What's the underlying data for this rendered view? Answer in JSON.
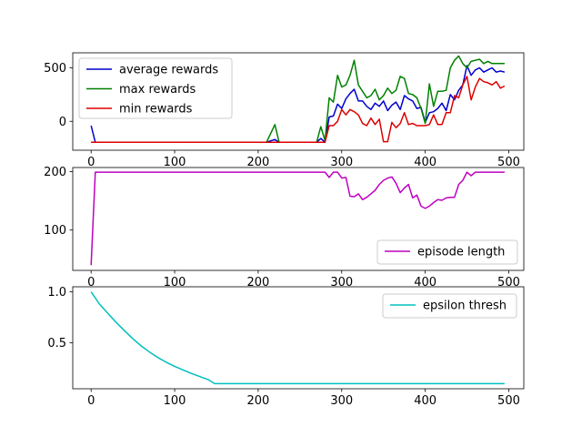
{
  "chart_data": [
    {
      "type": "line",
      "xlim": [
        -22,
        518
      ],
      "ylim": [
        -270,
        640
      ],
      "xticks": [
        0,
        100,
        200,
        300,
        400,
        500
      ],
      "yticks": [
        0,
        500
      ],
      "legend": "top-left",
      "series": [
        {
          "name": "average rewards",
          "color": "#0000cc",
          "x": [
            0,
            5,
            10,
            20,
            30,
            40,
            50,
            60,
            70,
            80,
            90,
            100,
            110,
            120,
            130,
            140,
            150,
            160,
            170,
            180,
            190,
            200,
            210,
            220,
            225,
            230,
            240,
            250,
            260,
            270,
            275,
            280,
            285,
            290,
            295,
            300,
            305,
            310,
            315,
            320,
            325,
            330,
            335,
            340,
            345,
            350,
            355,
            360,
            365,
            370,
            375,
            380,
            385,
            390,
            395,
            400,
            405,
            410,
            415,
            420,
            425,
            430,
            435,
            440,
            445,
            450,
            455,
            460,
            465,
            470,
            475,
            480,
            485,
            490,
            495
          ],
          "y": [
            -40,
            -195,
            -195,
            -195,
            -195,
            -195,
            -195,
            -195,
            -195,
            -195,
            -195,
            -195,
            -195,
            -195,
            -195,
            -195,
            -195,
            -195,
            -195,
            -195,
            -195,
            -195,
            -195,
            -170,
            -195,
            -195,
            -195,
            -195,
            -195,
            -195,
            -160,
            -195,
            40,
            50,
            160,
            120,
            210,
            260,
            300,
            190,
            190,
            140,
            110,
            170,
            140,
            190,
            100,
            150,
            180,
            110,
            240,
            210,
            190,
            120,
            130,
            -10,
            80,
            90,
            120,
            170,
            100,
            250,
            200,
            290,
            340,
            520,
            430,
            480,
            500,
            460,
            480,
            500,
            460,
            470,
            460
          ]
        },
        {
          "name": "max rewards",
          "color": "#008000",
          "x": [
            0,
            5,
            10,
            20,
            30,
            40,
            50,
            60,
            70,
            80,
            90,
            100,
            110,
            120,
            130,
            140,
            150,
            160,
            170,
            180,
            190,
            200,
            210,
            220,
            225,
            230,
            240,
            250,
            260,
            270,
            275,
            280,
            285,
            290,
            295,
            300,
            305,
            310,
            315,
            320,
            325,
            330,
            335,
            340,
            345,
            350,
            355,
            360,
            365,
            370,
            375,
            380,
            385,
            390,
            395,
            400,
            405,
            410,
            415,
            420,
            425,
            430,
            435,
            440,
            445,
            450,
            455,
            460,
            465,
            470,
            475,
            480,
            485,
            490,
            495
          ],
          "y": [
            -195,
            -195,
            -195,
            -195,
            -195,
            -195,
            -195,
            -195,
            -195,
            -195,
            -195,
            -195,
            -195,
            -195,
            -195,
            -195,
            -195,
            -195,
            -195,
            -195,
            -195,
            -195,
            -195,
            -30,
            -195,
            -195,
            -195,
            -195,
            -195,
            -195,
            -50,
            -180,
            220,
            180,
            430,
            320,
            340,
            430,
            570,
            340,
            280,
            220,
            240,
            300,
            200,
            240,
            310,
            260,
            290,
            420,
            400,
            260,
            250,
            220,
            120,
            -20,
            350,
            140,
            280,
            280,
            290,
            500,
            570,
            610,
            540,
            500,
            560,
            570,
            580,
            540,
            560,
            540,
            540,
            540,
            540
          ]
        },
        {
          "name": "min rewards",
          "color": "#dd0000",
          "x": [
            0,
            5,
            10,
            20,
            30,
            40,
            50,
            60,
            70,
            80,
            90,
            100,
            110,
            120,
            130,
            140,
            150,
            160,
            170,
            180,
            190,
            200,
            210,
            220,
            225,
            230,
            240,
            250,
            260,
            270,
            275,
            280,
            285,
            290,
            295,
            300,
            305,
            310,
            315,
            320,
            325,
            330,
            335,
            340,
            345,
            350,
            355,
            360,
            365,
            370,
            375,
            380,
            385,
            390,
            395,
            400,
            405,
            410,
            415,
            420,
            425,
            430,
            435,
            440,
            445,
            450,
            455,
            460,
            465,
            470,
            475,
            480,
            485,
            490,
            495
          ],
          "y": [
            -195,
            -195,
            -195,
            -195,
            -195,
            -195,
            -195,
            -195,
            -195,
            -195,
            -195,
            -195,
            -195,
            -195,
            -195,
            -195,
            -195,
            -195,
            -195,
            -195,
            -195,
            -195,
            -195,
            -195,
            -195,
            -195,
            -195,
            -195,
            -195,
            -195,
            -195,
            -195,
            -40,
            -40,
            0,
            110,
            60,
            110,
            90,
            60,
            -20,
            -40,
            30,
            -30,
            20,
            -190,
            -190,
            -10,
            -60,
            -20,
            80,
            -30,
            -20,
            -40,
            -40,
            -40,
            -30,
            60,
            -30,
            -30,
            80,
            80,
            240,
            220,
            340,
            420,
            200,
            320,
            400,
            370,
            360,
            340,
            370,
            310,
            330
          ]
        }
      ]
    },
    {
      "type": "line",
      "xlim": [
        -22,
        518
      ],
      "ylim": [
        31,
        207
      ],
      "xticks": [
        0,
        100,
        200,
        300,
        400,
        500
      ],
      "yticks": [
        100,
        200
      ],
      "legend": "bottom-right",
      "series": [
        {
          "name": "episode length",
          "color": "#bf00bf",
          "x": [
            0,
            5,
            10,
            20,
            30,
            40,
            50,
            60,
            70,
            80,
            90,
            100,
            150,
            200,
            250,
            280,
            285,
            290,
            295,
            300,
            305,
            310,
            315,
            320,
            325,
            330,
            335,
            340,
            345,
            350,
            355,
            360,
            365,
            370,
            375,
            380,
            385,
            390,
            395,
            400,
            405,
            410,
            415,
            420,
            425,
            430,
            435,
            440,
            445,
            450,
            455,
            460,
            465,
            470,
            475,
            480,
            485,
            490,
            495
          ],
          "y": [
            40,
            199,
            199,
            199,
            199,
            199,
            199,
            199,
            199,
            199,
            199,
            199,
            199,
            199,
            199,
            199,
            190,
            199,
            199,
            189,
            190,
            158,
            157,
            162,
            152,
            156,
            162,
            168,
            178,
            185,
            189,
            191,
            180,
            164,
            172,
            178,
            155,
            160,
            141,
            137,
            141,
            147,
            152,
            151,
            155,
            156,
            156,
            178,
            185,
            199,
            193,
            199,
            199,
            199,
            199,
            199,
            199,
            199,
            199
          ]
        }
      ]
    },
    {
      "type": "line",
      "xlim": [
        -22,
        518
      ],
      "ylim": [
        0.05,
        1.05
      ],
      "xticks": [
        0,
        100,
        200,
        300,
        400,
        500
      ],
      "yticks": [
        0.5,
        1.0
      ],
      "legend": "top-right",
      "series": [
        {
          "name": "epsilon thresh",
          "color": "#00bfbf",
          "x": [
            0,
            10,
            20,
            30,
            40,
            50,
            60,
            70,
            80,
            90,
            100,
            110,
            120,
            130,
            140,
            148,
            200,
            300,
            400,
            495
          ],
          "y": [
            1.0,
            0.88,
            0.79,
            0.7,
            0.62,
            0.54,
            0.47,
            0.41,
            0.355,
            0.31,
            0.27,
            0.235,
            0.2,
            0.17,
            0.14,
            0.1,
            0.1,
            0.1,
            0.1,
            0.1
          ]
        }
      ]
    }
  ],
  "tick_labels": {
    "x": [
      "0",
      "100",
      "200",
      "300",
      "400",
      "500"
    ],
    "y0": [
      "0",
      "500"
    ],
    "y1": [
      "100",
      "200"
    ],
    "y2": [
      "0.5",
      "1.0"
    ]
  }
}
